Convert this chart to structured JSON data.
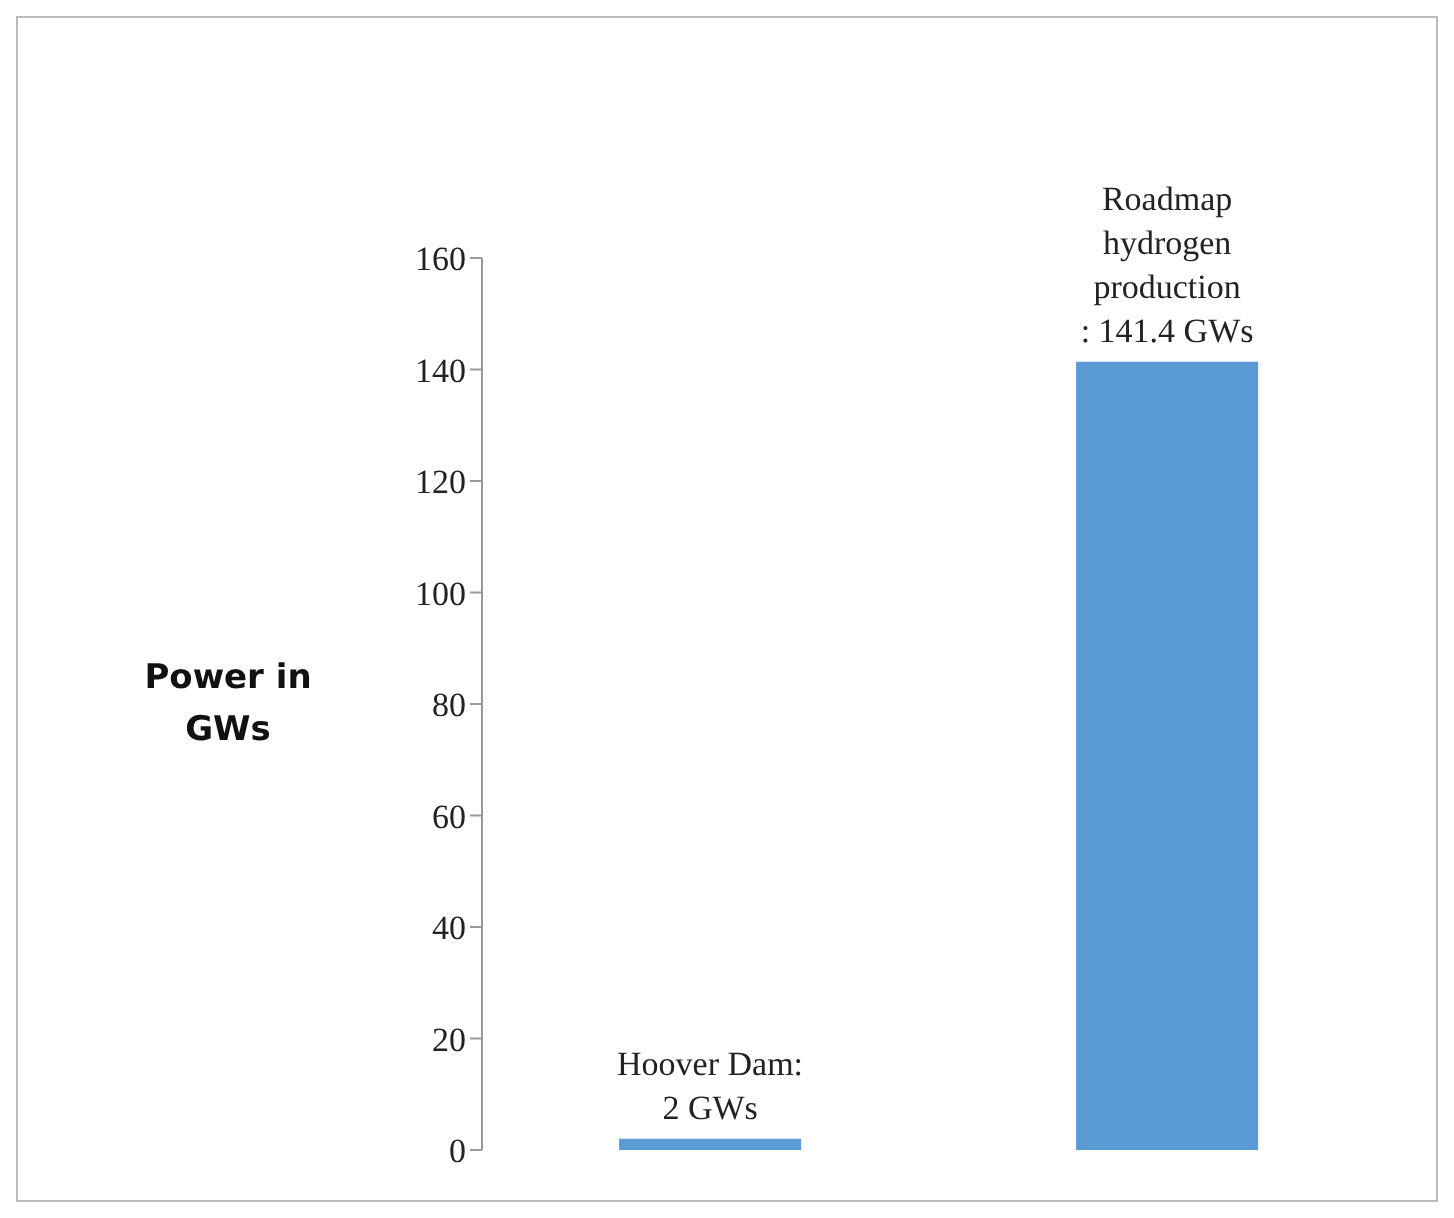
{
  "chart_data": {
    "type": "bar",
    "ylabel": "Power in GWs",
    "categories": [
      null,
      null
    ],
    "values": [
      2,
      141.4
    ],
    "color": "#5b9bd5",
    "value_labels": [
      "Hoover Dam: 2 GWs",
      "Roadmap hydrogen production : 141.4 GWs"
    ],
    "ylim": [
      0,
      160
    ],
    "yticks": [
      0,
      20,
      40,
      60,
      80,
      100,
      120,
      140,
      160
    ],
    "grid": false
  }
}
